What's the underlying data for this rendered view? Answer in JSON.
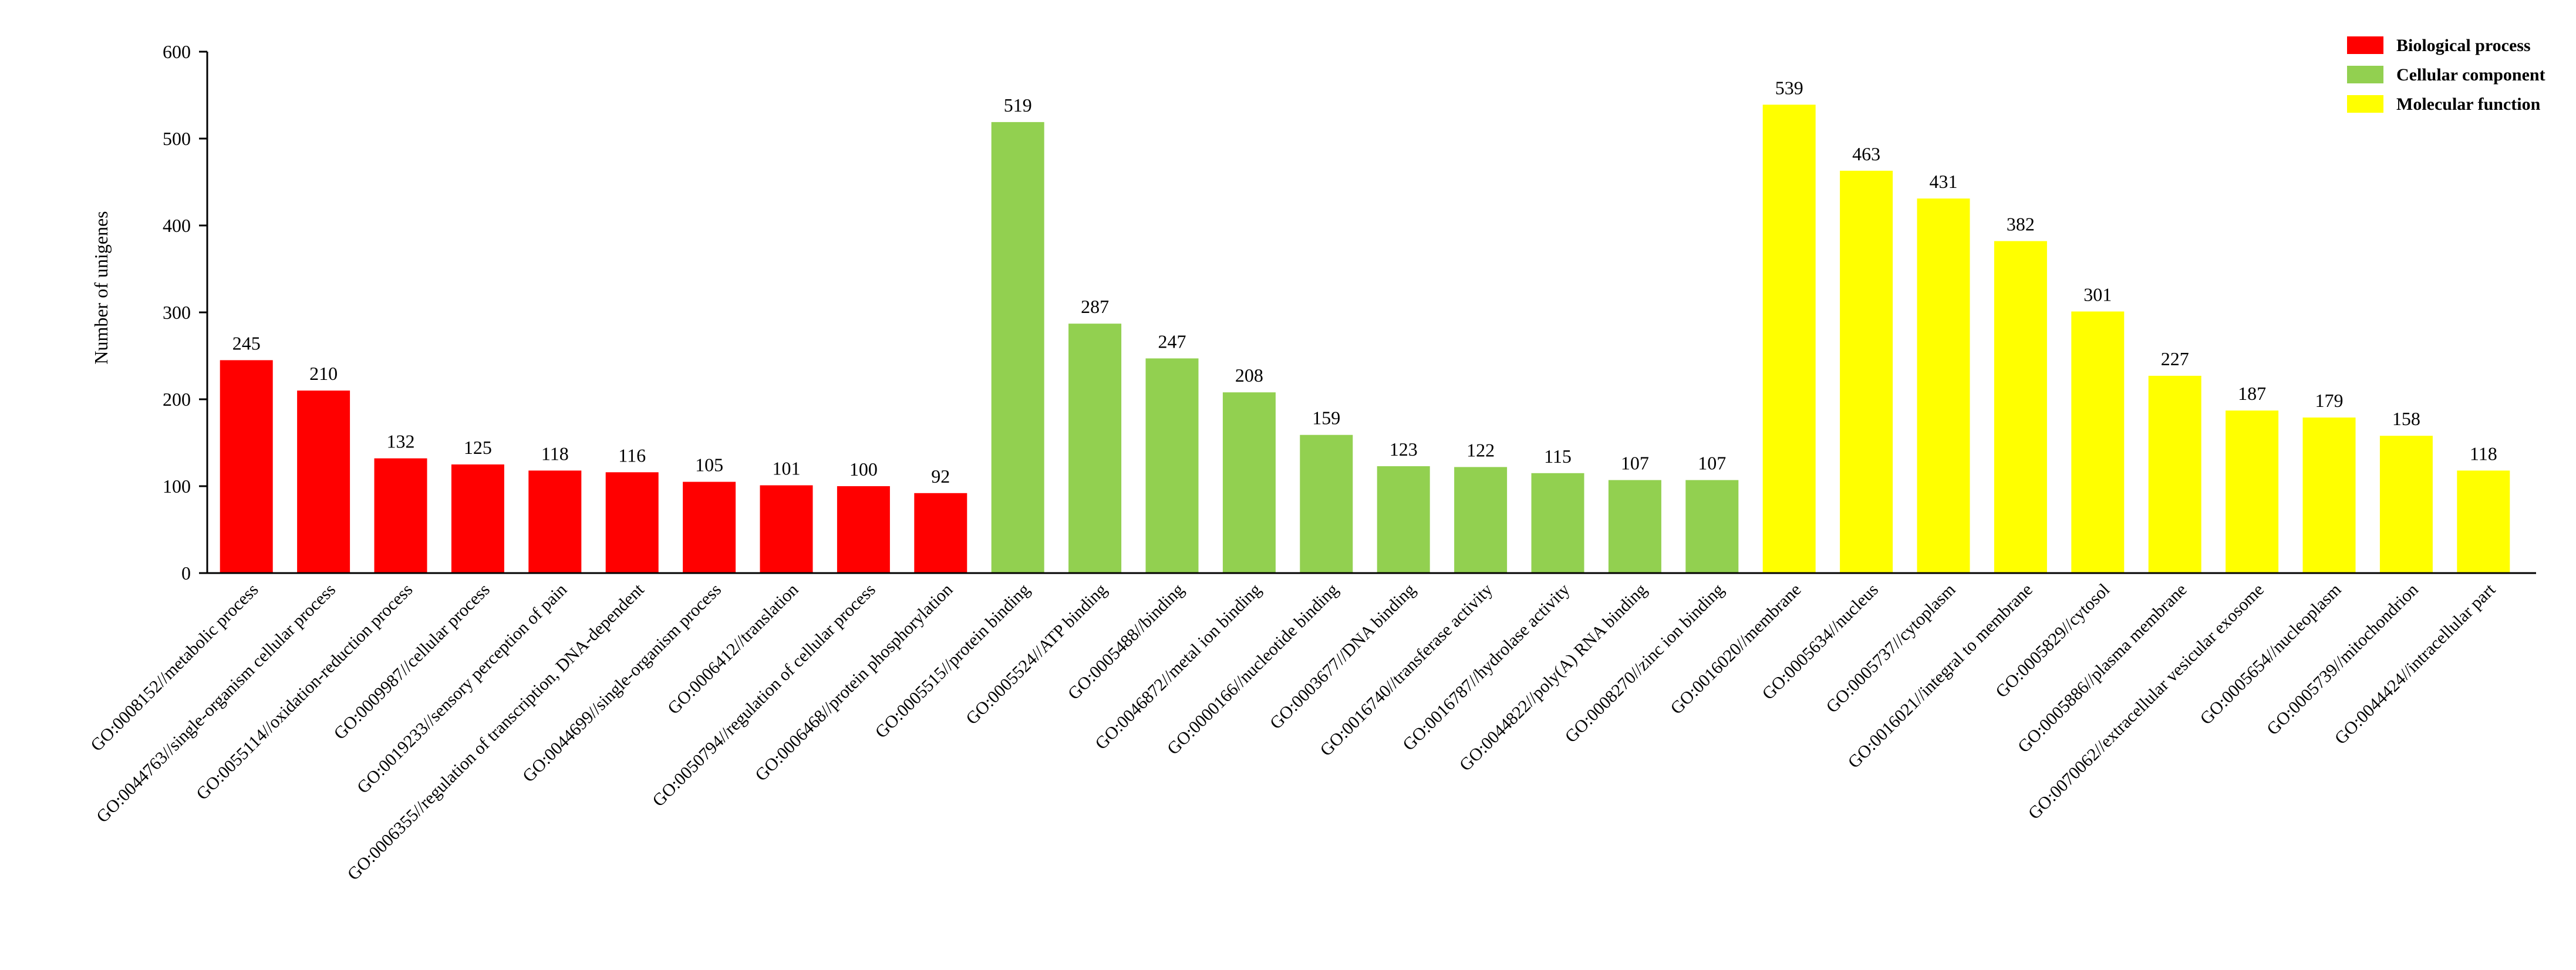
{
  "chart_data": {
    "type": "bar",
    "title": "",
    "xlabel": "",
    "ylabel": "Number of unigenes",
    "ylim": [
      0,
      600
    ],
    "yticks": [
      0,
      100,
      200,
      300,
      400,
      500,
      600
    ],
    "grid": false,
    "legend_position": "top-right",
    "colors": {
      "Biological process": "#ff0000",
      "Cellular component": "#92d050",
      "Molecular function": "#ffff00"
    },
    "legend": [
      {
        "name": "Biological process",
        "color": "#ff0000"
      },
      {
        "name": "Cellular component",
        "color": "#92d050"
      },
      {
        "name": "Molecular function",
        "color": "#ffff00"
      }
    ],
    "bars": [
      {
        "label": "GO:0008152//metabolic process",
        "value": 245,
        "group": "Biological process"
      },
      {
        "label": "GO:0044763//single-organism cellular process",
        "value": 210,
        "group": "Biological process"
      },
      {
        "label": "GO:0055114//oxidation-reduction process",
        "value": 132,
        "group": "Biological process"
      },
      {
        "label": "GO:0009987//cellular process",
        "value": 125,
        "group": "Biological process"
      },
      {
        "label": "GO:0019233//sensory perception of pain",
        "value": 118,
        "group": "Biological process"
      },
      {
        "label": "GO:0006355//regulation of transcription, DNA-dependent",
        "value": 116,
        "group": "Biological process"
      },
      {
        "label": "GO:0044699//single-organism process",
        "value": 105,
        "group": "Biological process"
      },
      {
        "label": "GO:0006412//translation",
        "value": 101,
        "group": "Biological process"
      },
      {
        "label": "GO:0050794//regulation of cellular process",
        "value": 100,
        "group": "Biological process"
      },
      {
        "label": "GO:0006468//protein phosphorylation",
        "value": 92,
        "group": "Biological process"
      },
      {
        "label": "GO:0005515//protein binding",
        "value": 519,
        "group": "Cellular component"
      },
      {
        "label": "GO:0005524//ATP binding",
        "value": 287,
        "group": "Cellular component"
      },
      {
        "label": "GO:0005488//binding",
        "value": 247,
        "group": "Cellular component"
      },
      {
        "label": "GO:0046872//metal ion binding",
        "value": 208,
        "group": "Cellular component"
      },
      {
        "label": "GO:0000166//nucleotide binding",
        "value": 159,
        "group": "Cellular component"
      },
      {
        "label": "GO:0003677//DNA binding",
        "value": 123,
        "group": "Cellular component"
      },
      {
        "label": "GO:0016740//transferase activity",
        "value": 122,
        "group": "Cellular component"
      },
      {
        "label": "GO:0016787//hydrolase activity",
        "value": 115,
        "group": "Cellular component"
      },
      {
        "label": "GO:0044822//poly(A) RNA binding",
        "value": 107,
        "group": "Cellular component"
      },
      {
        "label": "GO:0008270//zinc ion binding",
        "value": 107,
        "group": "Cellular component"
      },
      {
        "label": "GO:0016020//membrane",
        "value": 539,
        "group": "Molecular function"
      },
      {
        "label": "GO:0005634//nucleus",
        "value": 463,
        "group": "Molecular function"
      },
      {
        "label": "GO:0005737//cytoplasm",
        "value": 431,
        "group": "Molecular function"
      },
      {
        "label": "GO:0016021//integral to membrane",
        "value": 382,
        "group": "Molecular function"
      },
      {
        "label": "GO:0005829//cytosol",
        "value": 301,
        "group": "Molecular function"
      },
      {
        "label": "GO:0005886//plasma membrane",
        "value": 227,
        "group": "Molecular function"
      },
      {
        "label": "GO:0070062//extracellular vesicular exosome",
        "value": 187,
        "group": "Molecular function"
      },
      {
        "label": "GO:0005654//nucleoplasm",
        "value": 179,
        "group": "Molecular function"
      },
      {
        "label": "GO:0005739//mitochondrion",
        "value": 158,
        "group": "Molecular function"
      },
      {
        "label": "GO:0044424//intracellular part",
        "value": 118,
        "group": "Molecular function"
      }
    ]
  }
}
